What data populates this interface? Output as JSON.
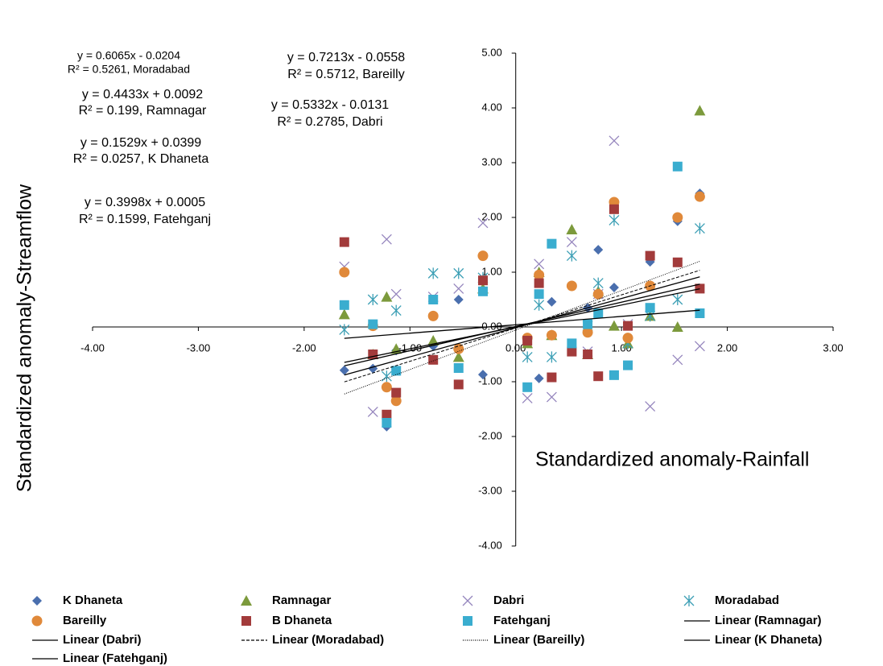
{
  "chart_data": {
    "type": "scatter",
    "x_label": "Standardized anomaly-Rainfall",
    "y_label": "Standardized anomaly-Streamflow",
    "xlim": [
      -4,
      3
    ],
    "ylim": [
      -4,
      5
    ],
    "xticks": [
      {
        "value": -4,
        "label": "-4.00"
      },
      {
        "value": -3,
        "label": "-3.00"
      },
      {
        "value": -2,
        "label": "-2.00"
      },
      {
        "value": -1,
        "label": "-1.00"
      },
      {
        "value": 0,
        "label": "0.00"
      },
      {
        "value": 1,
        "label": "1.00"
      },
      {
        "value": 2,
        "label": "2.00"
      },
      {
        "value": 3,
        "label": "3.00"
      }
    ],
    "yticks": [
      {
        "value": -4,
        "label": "-4.00"
      },
      {
        "value": -3,
        "label": "-3.00"
      },
      {
        "value": -2,
        "label": "-2.00"
      },
      {
        "value": -1,
        "label": "-1.00"
      },
      {
        "value": 0,
        "label": "0.00"
      },
      {
        "value": 1,
        "label": "1.00"
      },
      {
        "value": 2,
        "label": "2.00"
      },
      {
        "value": 3,
        "label": "3.00"
      },
      {
        "value": 4,
        "label": "4.00"
      },
      {
        "value": 5,
        "label": "5.00"
      }
    ],
    "x": [
      -1.62,
      -1.35,
      -1.22,
      -1.13,
      -0.78,
      -0.54,
      -0.31,
      0.11,
      0.22,
      0.34,
      0.53,
      0.68,
      0.78,
      0.93,
      1.06,
      1.27,
      1.53,
      1.74
    ],
    "series": [
      {
        "name": "K Dhaneta",
        "marker": "diamond",
        "color": "#4a6fae",
        "values": [
          -0.79,
          -0.76,
          -1.82,
          -0.43,
          -0.35,
          0.5,
          -0.87,
          -0.2,
          -0.94,
          0.46,
          0.75,
          0.35,
          1.41,
          0.72,
          0.02,
          1.19,
          1.93,
          2.44
        ]
      },
      {
        "name": "Ramnagar",
        "marker": "triangle",
        "color": "#7c9a3c",
        "values": [
          0.23,
          -0.5,
          0.55,
          -0.4,
          -0.25,
          -0.55,
          0.7,
          -0.3,
          1.0,
          -0.15,
          1.78,
          -0.5,
          0.65,
          0.02,
          -0.3,
          0.2,
          0.0,
          3.95
        ]
      },
      {
        "name": "Dabri",
        "marker": "x",
        "color": "#9585bd",
        "values": [
          1.1,
          -1.55,
          1.6,
          0.6,
          0.55,
          0.7,
          1.9,
          -1.3,
          1.15,
          -1.28,
          1.55,
          -0.45,
          0.6,
          3.4,
          0.05,
          -1.45,
          -0.6,
          -0.35
        ]
      },
      {
        "name": "Moradabad",
        "marker": "asterisk",
        "color": "#3c9fb5",
        "values": [
          -0.05,
          0.5,
          -0.9,
          0.3,
          0.98,
          0.98,
          0.9,
          -0.55,
          0.4,
          -0.55,
          1.3,
          0.02,
          0.8,
          1.95,
          -0.3,
          0.2,
          0.5,
          1.8
        ]
      },
      {
        "name": "Bareilly",
        "marker": "circle",
        "color": "#e0893a",
        "values": [
          1.0,
          0.02,
          -1.1,
          -1.35,
          0.2,
          -0.4,
          1.3,
          -0.2,
          0.95,
          -0.15,
          0.75,
          -0.1,
          0.6,
          2.28,
          -0.2,
          0.75,
          2.0,
          2.38
        ]
      },
      {
        "name": "B Dhaneta",
        "marker": "square",
        "color": "#a23b3b",
        "values": [
          1.55,
          -0.5,
          -1.6,
          -1.2,
          -0.6,
          -1.05,
          0.85,
          -0.25,
          0.8,
          -0.92,
          -0.45,
          -0.5,
          -0.9,
          2.15,
          0.02,
          1.3,
          1.18,
          0.7
        ]
      },
      {
        "name": "Fatehganj",
        "marker": "square",
        "color": "#3aadcf",
        "values": [
          0.4,
          0.05,
          -1.75,
          -0.8,
          0.5,
          -0.75,
          0.65,
          -1.1,
          0.6,
          1.52,
          -0.3,
          0.05,
          0.25,
          -0.88,
          -0.7,
          0.35,
          2.93,
          0.25
        ]
      }
    ],
    "trendlines": [
      {
        "name": "Linear (Ramnagar)",
        "dash": "solid",
        "x": [
          -1.62,
          1.74
        ],
        "values": [
          -0.709,
          0.781
        ]
      },
      {
        "name": "Linear (Dabri)",
        "dash": "solid",
        "x": [
          -1.62,
          1.74
        ],
        "values": [
          -0.877,
          0.915
        ]
      },
      {
        "name": "Linear (Moradabad)",
        "dash": "dashed",
        "x": [
          -1.62,
          1.74
        ],
        "values": [
          -1.003,
          1.035
        ]
      },
      {
        "name": "Linear (Bareilly)",
        "dash": "dotted",
        "x": [
          -1.62,
          1.74
        ],
        "values": [
          -1.224,
          1.199
        ]
      },
      {
        "name": "Linear (K Dhaneta)",
        "dash": "solid",
        "x": [
          -1.62,
          1.74
        ],
        "values": [
          -0.208,
          0.306
        ]
      },
      {
        "name": "Linear (Fatehganj)",
        "dash": "solid",
        "x": [
          -1.62,
          1.74
        ],
        "values": [
          -0.647,
          0.696
        ]
      }
    ],
    "annotations": [
      "y = 0.6065x - 0.0204",
      "R² = 0.5261, Moradabad",
      "y = 0.4433x + 0.0092",
      "R² = 0.199, Ramnagar",
      "y = 0.1529x + 0.0399",
      "R² = 0.0257, K Dhaneta",
      "y = 0.3998x + 0.0005",
      "R² = 0.1599, Fatehganj",
      "y = 0.7213x - 0.0558",
      "R² = 0.5712, Bareilly",
      "y = 0.5332x - 0.0131",
      "R² = 0.2785, Dabri"
    ]
  }
}
